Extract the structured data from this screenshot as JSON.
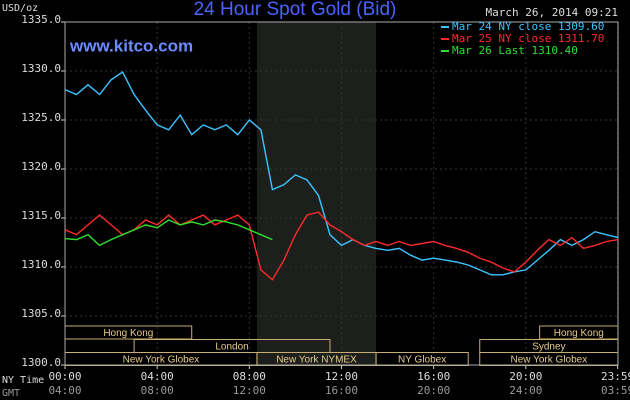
{
  "chart_data": {
    "type": "line",
    "title": "24 Hour Spot Gold (Bid)",
    "timestamp": "March 26, 2014 09:21",
    "watermark": "www.kitco.com",
    "y_label": "USD/oz",
    "x_label": "NY Time",
    "x2_label": "GMT",
    "x": [
      0,
      0.5,
      1,
      1.5,
      2,
      2.5,
      3,
      3.5,
      4,
      4.5,
      5,
      5.5,
      6,
      6.5,
      7,
      7.5,
      8,
      8.5,
      9,
      9.5,
      10,
      10.5,
      11,
      11.5,
      12,
      12.5,
      13,
      13.5,
      14,
      14.5,
      15,
      15.5,
      16,
      16.5,
      17,
      17.5,
      18,
      18.5,
      19,
      19.5,
      20,
      20.5,
      21,
      21.5,
      22,
      22.5,
      23,
      23.5,
      24
    ],
    "series": [
      {
        "name": "Mar 24 NY close 1309.60",
        "color": "#3cc4ff",
        "values": [
          1328.1,
          1327.6,
          1328.6,
          1327.6,
          1329.1,
          1329.9,
          1327.6,
          1326.0,
          1324.5,
          1324.0,
          1325.5,
          1323.5,
          1324.5,
          1324.0,
          1324.5,
          1323.5,
          1325.0,
          1324.0,
          1317.9,
          1318.4,
          1319.4,
          1318.9,
          1317.3,
          1313.3,
          1312.2,
          1312.8,
          1312.2,
          1311.9,
          1311.7,
          1311.9,
          1311.2,
          1310.7,
          1310.9,
          1310.7,
          1310.5,
          1310.2,
          1309.7,
          1309.2,
          1309.2,
          1309.5,
          1309.7,
          1310.7,
          1311.7,
          1312.8,
          1312.2,
          1312.8,
          1313.6,
          1313.3,
          1313.0
        ]
      },
      {
        "name": "Mar 25 NY close 1311.70",
        "color": "#ff2a2a",
        "values": [
          1313.8,
          1313.3,
          1314.3,
          1315.3,
          1314.3,
          1313.3,
          1313.8,
          1314.8,
          1314.3,
          1315.3,
          1314.3,
          1314.8,
          1315.3,
          1314.3,
          1314.8,
          1315.3,
          1314.3,
          1309.7,
          1308.7,
          1310.7,
          1313.3,
          1315.3,
          1315.6,
          1314.3,
          1313.6,
          1312.8,
          1312.2,
          1312.6,
          1312.2,
          1312.6,
          1312.2,
          1312.4,
          1312.6,
          1312.2,
          1311.9,
          1311.5,
          1310.9,
          1310.5,
          1309.9,
          1309.5,
          1310.5,
          1311.7,
          1312.8,
          1312.2,
          1313.0,
          1311.9,
          1312.2,
          1312.6,
          1312.8
        ]
      },
      {
        "name": "Mar 26 Last 1310.40",
        "color": "#2ee02e",
        "values": [
          1312.9,
          1312.8,
          1313.3,
          1312.2,
          1312.8,
          1313.3,
          1313.8,
          1314.3,
          1314.0,
          1314.8,
          1314.3,
          1314.6,
          1314.3,
          1314.8,
          1314.6,
          1314.3,
          1313.8,
          1313.3,
          1312.8,
          null,
          null,
          null,
          null,
          null,
          null,
          null,
          null,
          null,
          null,
          null,
          null,
          null,
          null,
          null,
          null,
          null,
          null,
          null,
          null,
          null,
          null,
          null,
          null,
          null,
          null,
          null,
          null,
          null,
          null
        ]
      }
    ],
    "ylim": [
      1300,
      1335
    ],
    "yticks": [
      {
        "value": 1300,
        "label": "1300.0"
      },
      {
        "value": 1305,
        "label": "1305.0"
      },
      {
        "value": 1310,
        "label": "1310.0"
      },
      {
        "value": 1315,
        "label": "1315.0"
      },
      {
        "value": 1320,
        "label": "1320.0"
      },
      {
        "value": 1325,
        "label": "1325.0"
      },
      {
        "value": 1330,
        "label": "1330.0"
      },
      {
        "value": 1335,
        "label": "1335.0"
      }
    ],
    "xlim": [
      0,
      24
    ],
    "xticks": [
      {
        "value": 0,
        "label": "00:00"
      },
      {
        "value": 4,
        "label": "04:00"
      },
      {
        "value": 8,
        "label": "08:00"
      },
      {
        "value": 12,
        "label": "12:00"
      },
      {
        "value": 16,
        "label": "16:00"
      },
      {
        "value": 20,
        "label": "20:00"
      },
      {
        "value": 23.983,
        "label": "23:59"
      }
    ],
    "gmt_labels": [
      "04:00",
      "08:00",
      "12:00",
      "16:00",
      "20:00",
      "24:00",
      "03:59"
    ],
    "session_rows": [
      [
        {
          "label": "Hong Kong",
          "start": 0,
          "end": 5.5
        },
        {
          "label": "Hong Kong",
          "start": 20.6,
          "end": 24
        }
      ],
      [
        {
          "label": "London",
          "start": 3,
          "end": 11.5
        },
        {
          "label": "Sydney",
          "start": 18,
          "end": 24
        }
      ],
      [
        {
          "label": "New York Globex",
          "start": 0,
          "end": 8.33
        },
        {
          "label": "New York NYMEX",
          "start": 8.33,
          "end": 13.5,
          "shaded": true
        },
        {
          "label": "NY Globex",
          "start": 13.5,
          "end": 17.5
        },
        {
          "label": "New York Globex",
          "start": 18,
          "end": 24
        }
      ]
    ],
    "grid": true
  }
}
